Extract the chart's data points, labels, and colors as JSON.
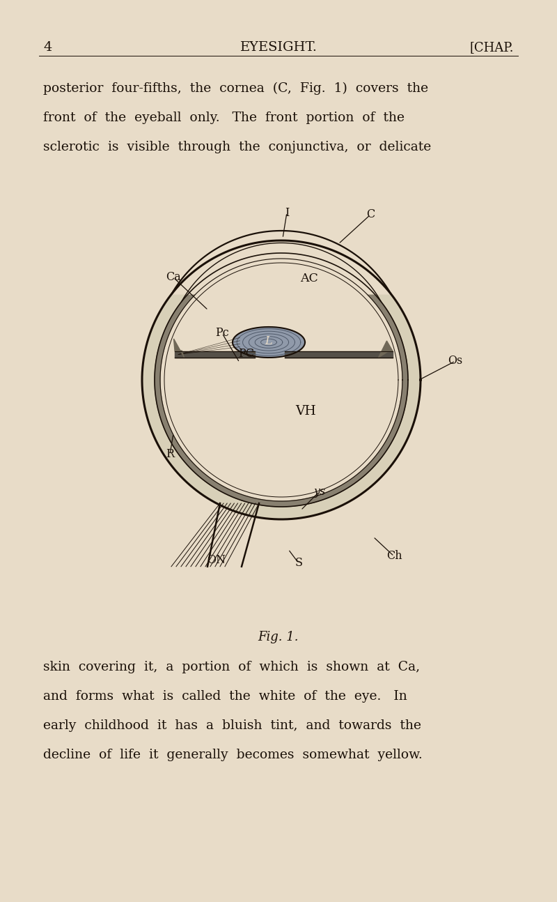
{
  "bg_color": "#e8dcc8",
  "text_color": "#1a1008",
  "header_number": "4",
  "header_title": "EYESIGHT.",
  "header_chap": "[CHAP.",
  "para1_lines": [
    "posterior  four-fifths,  the  cornea  (C,  Fig.  1)  covers  the",
    "front  of  the  eyeball  only.   The  front  portion  of  the",
    "sclerotic  is  visible  through  the  conjunctiva,  or  delicate"
  ],
  "para2_lines": [
    "skin  covering  it,  a  portion  of  which  is  shown  at  Ca,",
    "and  forms  what  is  called  the  white  of  the  eye.   In",
    "early  childhood  it  has  a  bluish  tint,  and  towards  the",
    "decline  of  life  it  generally  becomes  somewhat  yellow."
  ],
  "fig_caption": "Fig. 1.",
  "dark": "#1a1008",
  "mid": "#444444",
  "wall_fill": "#c8bfa0",
  "lens_fill": "#8090a0",
  "lens_outer": "#607080"
}
